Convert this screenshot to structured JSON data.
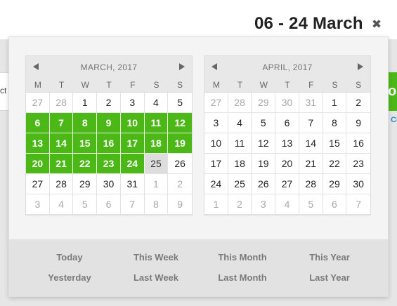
{
  "header": {
    "range_title": "06 - 24 March",
    "close_glyph": "✖"
  },
  "background": {
    "left_fragment": "ct",
    "right_button_fragment": "ol",
    "right_link_fragment": "Cl"
  },
  "weekdays": [
    "M",
    "T",
    "W",
    "T",
    "F",
    "S",
    "S"
  ],
  "calendars": [
    {
      "title": "MARCH, 2017",
      "weeks": [
        [
          {
            "d": "27",
            "s": "off"
          },
          {
            "d": "28",
            "s": "off"
          },
          {
            "d": "1",
            "s": ""
          },
          {
            "d": "2",
            "s": ""
          },
          {
            "d": "3",
            "s": ""
          },
          {
            "d": "4",
            "s": ""
          },
          {
            "d": "5",
            "s": ""
          }
        ],
        [
          {
            "d": "6",
            "s": "sel"
          },
          {
            "d": "7",
            "s": "sel"
          },
          {
            "d": "8",
            "s": "sel"
          },
          {
            "d": "9",
            "s": "sel"
          },
          {
            "d": "10",
            "s": "sel"
          },
          {
            "d": "11",
            "s": "sel"
          },
          {
            "d": "12",
            "s": "sel"
          }
        ],
        [
          {
            "d": "13",
            "s": "sel"
          },
          {
            "d": "14",
            "s": "sel"
          },
          {
            "d": "15",
            "s": "sel"
          },
          {
            "d": "16",
            "s": "sel"
          },
          {
            "d": "17",
            "s": "sel"
          },
          {
            "d": "18",
            "s": "sel"
          },
          {
            "d": "19",
            "s": "sel"
          }
        ],
        [
          {
            "d": "20",
            "s": "sel"
          },
          {
            "d": "21",
            "s": "sel"
          },
          {
            "d": "22",
            "s": "sel"
          },
          {
            "d": "23",
            "s": "sel"
          },
          {
            "d": "24",
            "s": "sel"
          },
          {
            "d": "25",
            "s": "today"
          },
          {
            "d": "26",
            "s": ""
          }
        ],
        [
          {
            "d": "27",
            "s": ""
          },
          {
            "d": "28",
            "s": ""
          },
          {
            "d": "29",
            "s": ""
          },
          {
            "d": "30",
            "s": ""
          },
          {
            "d": "31",
            "s": ""
          },
          {
            "d": "1",
            "s": "off"
          },
          {
            "d": "2",
            "s": "off"
          }
        ],
        [
          {
            "d": "3",
            "s": "off"
          },
          {
            "d": "4",
            "s": "off"
          },
          {
            "d": "5",
            "s": "off"
          },
          {
            "d": "6",
            "s": "off"
          },
          {
            "d": "7",
            "s": "off"
          },
          {
            "d": "8",
            "s": "off"
          },
          {
            "d": "9",
            "s": "off"
          }
        ]
      ]
    },
    {
      "title": "APRIL, 2017",
      "weeks": [
        [
          {
            "d": "27",
            "s": "off"
          },
          {
            "d": "28",
            "s": "off"
          },
          {
            "d": "29",
            "s": "off"
          },
          {
            "d": "30",
            "s": "off"
          },
          {
            "d": "31",
            "s": "off"
          },
          {
            "d": "1",
            "s": ""
          },
          {
            "d": "2",
            "s": ""
          }
        ],
        [
          {
            "d": "3",
            "s": ""
          },
          {
            "d": "4",
            "s": ""
          },
          {
            "d": "5",
            "s": ""
          },
          {
            "d": "6",
            "s": ""
          },
          {
            "d": "7",
            "s": ""
          },
          {
            "d": "8",
            "s": ""
          },
          {
            "d": "9",
            "s": ""
          }
        ],
        [
          {
            "d": "10",
            "s": ""
          },
          {
            "d": "11",
            "s": ""
          },
          {
            "d": "12",
            "s": ""
          },
          {
            "d": "13",
            "s": ""
          },
          {
            "d": "14",
            "s": ""
          },
          {
            "d": "15",
            "s": ""
          },
          {
            "d": "16",
            "s": ""
          }
        ],
        [
          {
            "d": "17",
            "s": ""
          },
          {
            "d": "18",
            "s": ""
          },
          {
            "d": "19",
            "s": ""
          },
          {
            "d": "20",
            "s": ""
          },
          {
            "d": "21",
            "s": ""
          },
          {
            "d": "22",
            "s": ""
          },
          {
            "d": "23",
            "s": ""
          }
        ],
        [
          {
            "d": "24",
            "s": ""
          },
          {
            "d": "25",
            "s": ""
          },
          {
            "d": "26",
            "s": ""
          },
          {
            "d": "27",
            "s": ""
          },
          {
            "d": "28",
            "s": ""
          },
          {
            "d": "29",
            "s": ""
          },
          {
            "d": "30",
            "s": ""
          }
        ],
        [
          {
            "d": "1",
            "s": "off"
          },
          {
            "d": "2",
            "s": "off"
          },
          {
            "d": "3",
            "s": "off"
          },
          {
            "d": "4",
            "s": "off"
          },
          {
            "d": "5",
            "s": "off"
          },
          {
            "d": "6",
            "s": "off"
          },
          {
            "d": "7",
            "s": "off"
          }
        ]
      ]
    }
  ],
  "presets": {
    "today": "Today",
    "this_week": "This Week",
    "this_month": "This Month",
    "this_year": "This Year",
    "yesterday": "Yesterday",
    "last_week": "Last Week",
    "last_month": "Last Month",
    "last_year": "Last Year"
  },
  "colors": {
    "selected": "#4cb818",
    "today": "#dddddd",
    "muted": "#a7a7a7"
  }
}
